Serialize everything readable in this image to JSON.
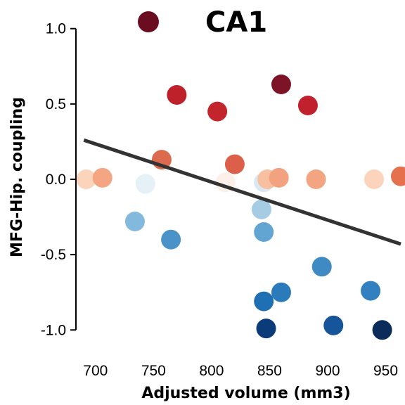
{
  "chart_data": {
    "type": "scatter",
    "title": "CA1",
    "xlabel": "Adjusted volume (mm3)",
    "ylabel": "MFG-Hip. coupling",
    "xlim": [
      688,
      963
    ],
    "ylim": [
      -1.05,
      1.05
    ],
    "xticks": [
      700,
      750,
      800,
      850,
      900,
      950
    ],
    "yticks": [
      1.0,
      0.5,
      0.0,
      -0.5,
      -1.0
    ],
    "ytick_labels": [
      "1.0",
      "0.5",
      "0.0",
      "-0.5",
      "-1.0"
    ],
    "grid": false,
    "legend": false,
    "legend_marker_color": "#6b0d20",
    "regression_line": {
      "x": [
        690,
        963
      ],
      "y": [
        0.26,
        -0.43
      ],
      "color": "#333333"
    },
    "points": [
      {
        "x": 692,
        "y": 0.0,
        "color": "#fcd3bb"
      },
      {
        "x": 706,
        "y": 0.01,
        "color": "#f4a582"
      },
      {
        "x": 743,
        "y": -0.03,
        "color": "#e6f0f7"
      },
      {
        "x": 734,
        "y": -0.28,
        "color": "#83b9dc"
      },
      {
        "x": 757,
        "y": 0.13,
        "color": "#dc6a4c"
      },
      {
        "x": 770,
        "y": 0.56,
        "color": "#bf212a"
      },
      {
        "x": 765,
        "y": -0.4,
        "color": "#4a93c8"
      },
      {
        "x": 805,
        "y": 0.45,
        "color": "#c3252c"
      },
      {
        "x": 812,
        "y": -0.02,
        "color": "#fdf0e8"
      },
      {
        "x": 820,
        "y": 0.1,
        "color": "#dc6049"
      },
      {
        "x": 843,
        "y": -0.2,
        "color": "#a6cce4"
      },
      {
        "x": 845,
        "y": -0.02,
        "color": "#d9e9f3"
      },
      {
        "x": 848,
        "y": 0.0,
        "color": "#f8bfa0"
      },
      {
        "x": 845,
        "y": -0.35,
        "color": "#62a5d2"
      },
      {
        "x": 845,
        "y": -0.81,
        "color": "#1f6fb5"
      },
      {
        "x": 847,
        "y": -0.99,
        "color": "#0c3b7a"
      },
      {
        "x": 858,
        "y": 0.01,
        "color": "#f2a27e"
      },
      {
        "x": 860,
        "y": 0.63,
        "color": "#7d1326"
      },
      {
        "x": 860,
        "y": -0.75,
        "color": "#2b7bbb"
      },
      {
        "x": 883,
        "y": 0.49,
        "color": "#c0212c"
      },
      {
        "x": 890,
        "y": 0.0,
        "color": "#f3a581"
      },
      {
        "x": 895,
        "y": -0.58,
        "color": "#3f8ac3"
      },
      {
        "x": 905,
        "y": -0.97,
        "color": "#17559b"
      },
      {
        "x": 937,
        "y": -0.74,
        "color": "#3280bf"
      },
      {
        "x": 940,
        "y": 0.0,
        "color": "#fcd3bb"
      },
      {
        "x": 947,
        "y": -1.0,
        "color": "#0b2b5b"
      },
      {
        "x": 963,
        "y": 0.02,
        "color": "#e4704e"
      }
    ]
  }
}
